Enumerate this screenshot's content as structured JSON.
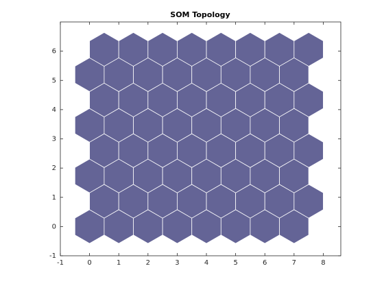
{
  "chart_data": {
    "type": "hextop",
    "title": "SOM Topology",
    "x": [
      0,
      1,
      2,
      3,
      4,
      5,
      6,
      7,
      0.5,
      1.5,
      2.5,
      3.5,
      4.5,
      5.5,
      6.5,
      7.5,
      0,
      1,
      2,
      3,
      4,
      5,
      6,
      7,
      0.5,
      1.5,
      2.5,
      3.5,
      4.5,
      5.5,
      6.5,
      7.5,
      0,
      1,
      2,
      3,
      4,
      5,
      6,
      7,
      0.5,
      1.5,
      2.5,
      3.5,
      4.5,
      5.5,
      6.5,
      7.5,
      0,
      1,
      2,
      3,
      4,
      5,
      6,
      7,
      0.5,
      1.5,
      2.5,
      3.5,
      4.5,
      5.5,
      6.5,
      7.5
    ],
    "y": [
      0,
      0,
      0,
      0,
      0,
      0,
      0,
      0,
      0.866,
      0.866,
      0.866,
      0.866,
      0.866,
      0.866,
      0.866,
      0.866,
      1.732,
      1.732,
      1.732,
      1.732,
      1.732,
      1.732,
      1.732,
      1.732,
      2.598,
      2.598,
      2.598,
      2.598,
      2.598,
      2.598,
      2.598,
      2.598,
      3.464,
      3.464,
      3.464,
      3.464,
      3.464,
      3.464,
      3.464,
      3.464,
      4.33,
      4.33,
      4.33,
      4.33,
      4.33,
      4.33,
      4.33,
      4.33,
      5.196,
      5.196,
      5.196,
      5.196,
      5.196,
      5.196,
      5.196,
      5.196,
      6.062,
      6.062,
      6.062,
      6.062,
      6.062,
      6.062,
      6.062,
      6.062
    ],
    "color": "#646496",
    "xlim": [
      -1,
      8.6
    ],
    "ylim": [
      -1,
      7
    ],
    "xticks": [
      -1,
      0,
      1,
      2,
      3,
      4,
      5,
      6,
      7,
      8
    ],
    "yticks": [
      -1,
      0,
      1,
      2,
      3,
      4,
      5,
      6
    ]
  }
}
